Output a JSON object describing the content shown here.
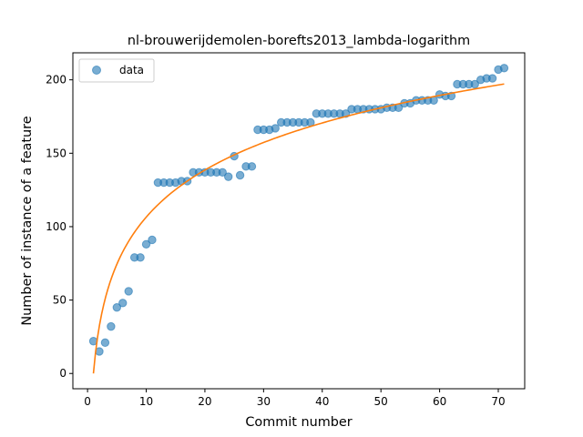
{
  "chart_data": {
    "type": "scatter",
    "title": "nl-brouwerijdemolen-borefts2013_lambda-logarithm",
    "xlabel": "Commit number",
    "ylabel": "Number of instance of a feature",
    "xlim": [
      -2.5,
      74.5
    ],
    "ylim": [
      -10.4,
      218.4
    ],
    "x_ticks": [
      0,
      10,
      20,
      30,
      40,
      50,
      60,
      70
    ],
    "y_ticks": [
      0,
      50,
      100,
      150,
      200
    ],
    "legend": {
      "placement": "top-left",
      "entries": [
        "data"
      ]
    },
    "grid": false,
    "series": [
      {
        "name": "data",
        "kind": "scatter",
        "color": "#1f77b4",
        "x": [
          1,
          2,
          3,
          4,
          5,
          6,
          7,
          8,
          9,
          10,
          11,
          12,
          13,
          14,
          15,
          16,
          17,
          18,
          19,
          20,
          21,
          22,
          23,
          24,
          25,
          26,
          27,
          28,
          29,
          30,
          31,
          32,
          33,
          34,
          35,
          36,
          37,
          38,
          39,
          40,
          41,
          42,
          43,
          44,
          45,
          46,
          47,
          48,
          49,
          50,
          51,
          52,
          53,
          54,
          55,
          56,
          57,
          58,
          59,
          60,
          61,
          62,
          63,
          64,
          65,
          66,
          67,
          68,
          69,
          70,
          71
        ],
        "y": [
          22,
          15,
          21,
          32,
          45,
          48,
          56,
          79,
          79,
          88,
          91,
          130,
          130,
          130,
          130,
          131,
          131,
          137,
          137,
          137,
          137,
          137,
          137,
          134,
          148,
          135,
          141,
          141,
          166,
          166,
          166,
          167,
          171,
          171,
          171,
          171,
          171,
          171,
          177,
          177,
          177,
          177,
          177,
          177,
          180,
          180,
          180,
          180,
          180,
          180,
          181,
          181,
          181,
          184,
          184,
          186,
          186,
          186,
          186,
          190,
          189,
          189,
          197,
          197,
          197,
          197,
          200,
          201,
          201,
          207,
          208
        ]
      },
      {
        "kind": "line",
        "color": "#ff7f0e",
        "fit": {
          "model": "logarithmic",
          "a": 46.25,
          "b": 0.0
        },
        "x_range": [
          1,
          71
        ]
      }
    ]
  }
}
